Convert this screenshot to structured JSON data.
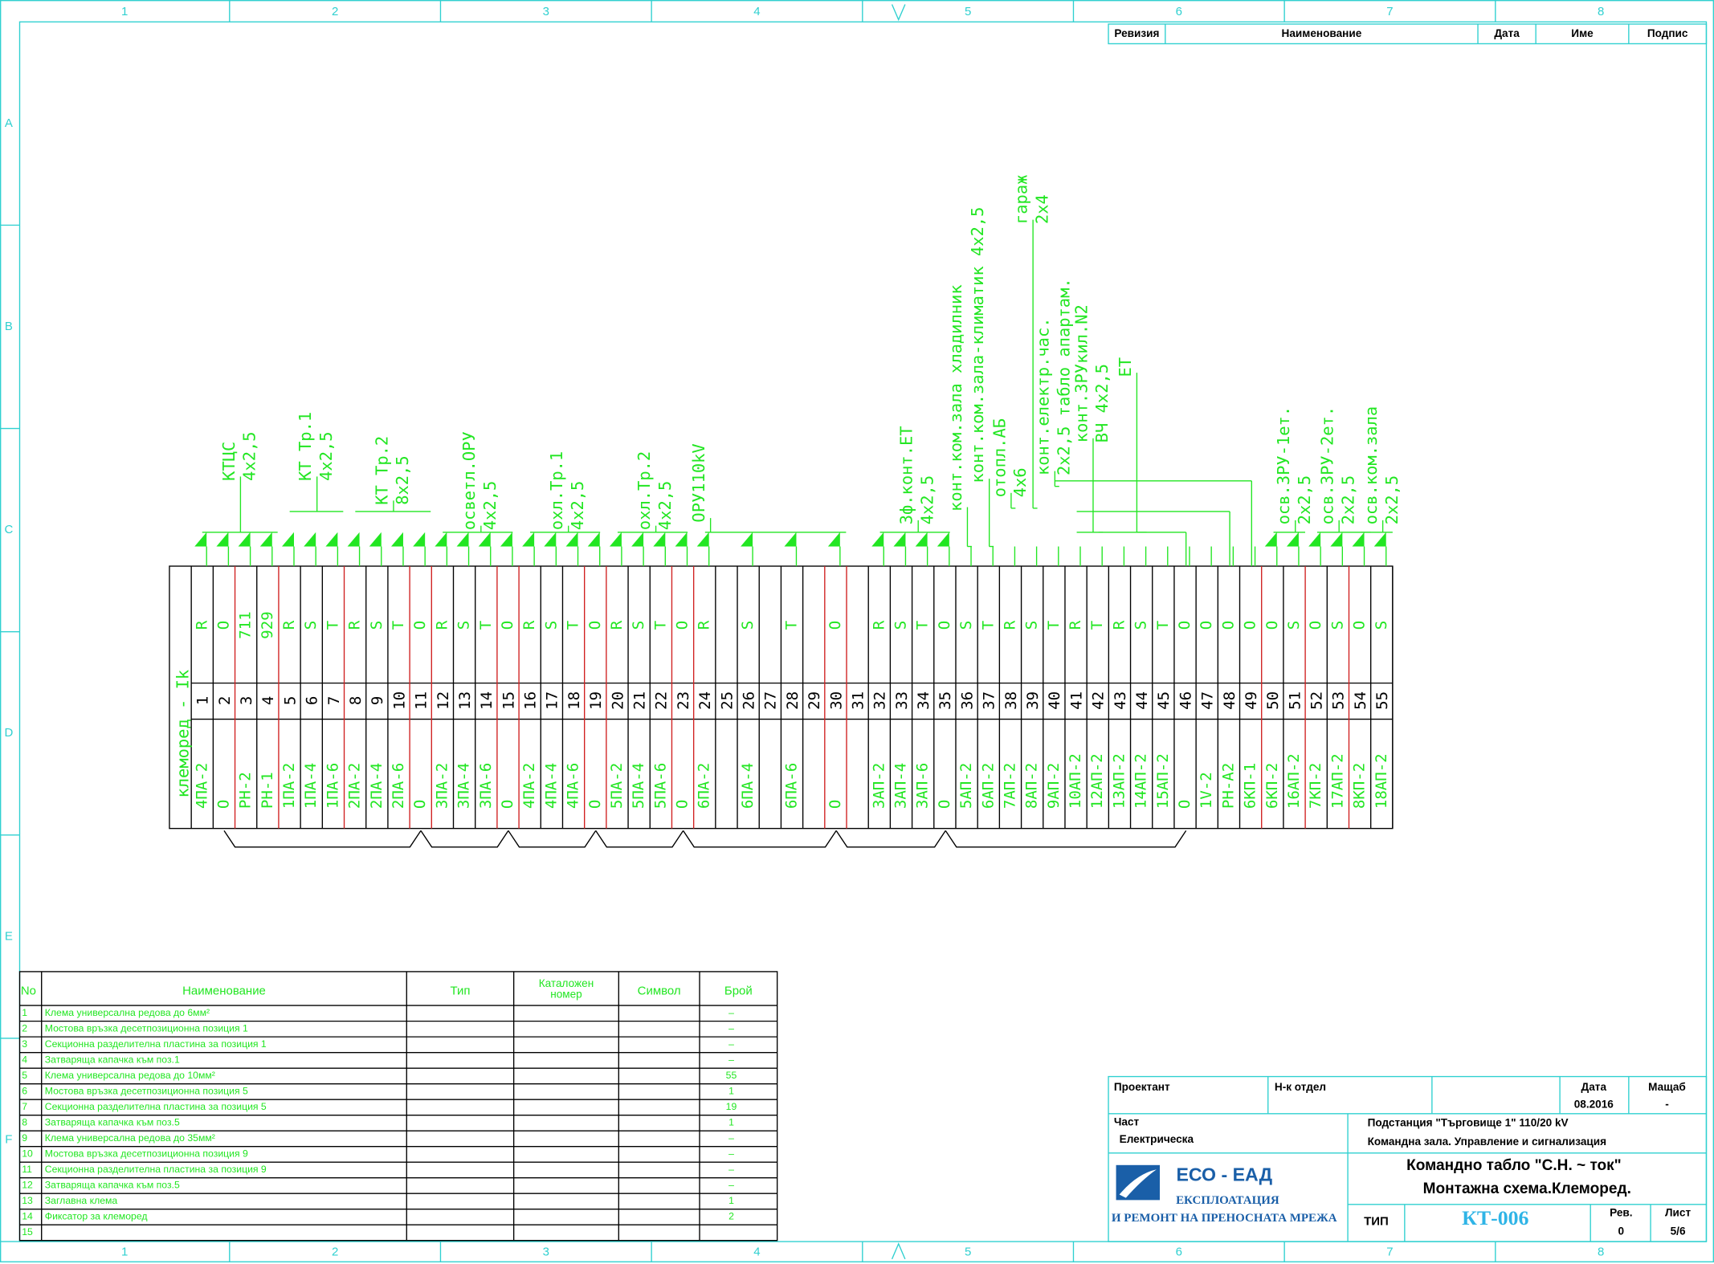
{
  "frame": {
    "columns": [
      "1",
      "2",
      "3",
      "4",
      "5",
      "6",
      "7",
      "8"
    ],
    "rows": [
      "A",
      "B",
      "C",
      "D",
      "E",
      "F"
    ]
  },
  "revision_header": [
    "Ревизия",
    "Наименование",
    "Дата",
    "Име",
    "Подпис"
  ],
  "terminal_strip": {
    "title": "клеморед - Ik",
    "terminals": [
      [
        1,
        "R",
        "4ПА-2"
      ],
      [
        2,
        "O",
        "O"
      ],
      [
        3,
        "711",
        "РН-2"
      ],
      [
        4,
        "929",
        "РН-1"
      ],
      [
        5,
        "R",
        "1ПА-2"
      ],
      [
        6,
        "S",
        "1ПА-4"
      ],
      [
        7,
        "T",
        "1ПА-6"
      ],
      [
        8,
        "R",
        "2ПА-2"
      ],
      [
        9,
        "S",
        "2ПА-4"
      ],
      [
        10,
        "T",
        "2ПА-6"
      ],
      [
        11,
        "O",
        "O"
      ],
      [
        12,
        "R",
        "3ПА-2"
      ],
      [
        13,
        "S",
        "3ПА-4"
      ],
      [
        14,
        "T",
        "3ПА-6"
      ],
      [
        15,
        "O",
        "O"
      ],
      [
        16,
        "R",
        "4ПА-2"
      ],
      [
        17,
        "S",
        "4ПА-4"
      ],
      [
        18,
        "T",
        "4ПА-6"
      ],
      [
        19,
        "O",
        "O"
      ],
      [
        20,
        "R",
        "5ПА-2"
      ],
      [
        21,
        "S",
        "5ПА-4"
      ],
      [
        22,
        "T",
        "5ПА-6"
      ],
      [
        23,
        "O",
        "O"
      ],
      [
        24,
        "R",
        "6ПА-2"
      ],
      [
        25,
        null,
        null
      ],
      [
        26,
        "S",
        "6ПА-4"
      ],
      [
        27,
        null,
        null
      ],
      [
        28,
        "T",
        "6ПА-6"
      ],
      [
        29,
        null,
        null
      ],
      [
        30,
        "O",
        "O"
      ],
      [
        31,
        null,
        null
      ],
      [
        32,
        "R",
        "3АП-2"
      ],
      [
        33,
        "S",
        "3АП-4"
      ],
      [
        34,
        "T",
        "3АП-6"
      ],
      [
        35,
        "O",
        "O"
      ],
      [
        36,
        "S",
        "5АП-2"
      ],
      [
        37,
        "T",
        "6АП-2"
      ],
      [
        38,
        "R",
        "7АП-2"
      ],
      [
        39,
        "S",
        "8АП-2"
      ],
      [
        40,
        "T",
        "9АП-2"
      ],
      [
        41,
        "R",
        "10АП-2"
      ],
      [
        42,
        "T",
        "12АП-2"
      ],
      [
        43,
        "R",
        "13АП-2"
      ],
      [
        44,
        "S",
        "14АП-2"
      ],
      [
        45,
        "T",
        "15АП-2"
      ],
      [
        46,
        "O",
        "O"
      ],
      [
        47,
        "O",
        "1V-2"
      ],
      [
        48,
        "O",
        "РН-А2"
      ],
      [
        49,
        "O",
        "6КП-1"
      ],
      [
        50,
        "O",
        "6КП-2"
      ],
      [
        51,
        "S",
        "16АП-2"
      ],
      [
        52,
        "O",
        "7КП-2"
      ],
      [
        53,
        "S",
        "17АП-2"
      ],
      [
        54,
        "O",
        "8КП-2"
      ],
      [
        55,
        "S",
        "18АП-2"
      ]
    ]
  },
  "cables": [
    {
      "lines": [
        "КТЦС",
        "4x2,5"
      ]
    },
    {
      "lines": [
        "КТ Тр.1",
        "4x2,5"
      ]
    },
    {
      "lines": [
        "КТ Тр.2",
        "8x2,5"
      ]
    },
    {
      "lines": [
        "осветл.ОРУ",
        "4x2,5"
      ]
    },
    {
      "lines": [
        "охл.Тр.1",
        "4x2,5"
      ]
    },
    {
      "lines": [
        "охл.Тр.2",
        "4x2,5"
      ]
    },
    {
      "lines": [
        "ОРУ110kV"
      ]
    },
    {
      "lines": [
        "3ф.конт.ЕТ",
        "4x2,5"
      ]
    },
    {
      "lines": [
        "конт.ком.зала хладилник"
      ]
    },
    {
      "lines": [
        "конт.ком.зала-климатик  4x2,5"
      ]
    },
    {
      "lines": [
        "отопл.АБ",
        "4x6"
      ]
    },
    {
      "lines": [
        "гараж",
        "2x4"
      ]
    },
    {
      "lines": [
        "конт.електр.час.",
        "2x2,5  табло апартам."
      ]
    },
    {
      "lines": [
        "конт.ЗРУкил.N2",
        "ВЧ 4x2,5"
      ]
    },
    {
      "lines": [
        "ЕТ"
      ]
    },
    {
      "lines": [
        "осв.ЗРУ-1ет.",
        "2x2,5"
      ]
    },
    {
      "lines": [
        "осв.ЗРУ-2ет.",
        "2x2,5"
      ]
    },
    {
      "lines": [
        "осв.ком.зала",
        "2x2,5"
      ]
    }
  ],
  "parts_table": {
    "header": [
      "No",
      "Наименование",
      "Тип",
      "Каталожен номер",
      "Символ",
      "Брой"
    ],
    "rows": [
      [
        "1",
        "Клема универсална редова до 6мм²",
        "–"
      ],
      [
        "2",
        "Мостова връзка десетпозиционна позиция 1",
        "–"
      ],
      [
        "3",
        "Секционна разделителна пластина за позиция 1",
        "–"
      ],
      [
        "4",
        "Затваряща капачка към поз.1",
        "–"
      ],
      [
        "5",
        "Клема универсална редова до 10мм²",
        "55"
      ],
      [
        "6",
        "Мостова връзка десетпозиционна позиция 5",
        "1"
      ],
      [
        "7",
        "Секционна разделителна пластина за позиция 5",
        "19"
      ],
      [
        "8",
        "Затваряща капачка към поз.5",
        "1"
      ],
      [
        "9",
        "Клема универсална редова до 35мм²",
        "–"
      ],
      [
        "10",
        "Мостова връзка десетпозиционна позиция 9",
        "–"
      ],
      [
        "11",
        "Секционна разделителна пластина за позиция 9",
        "–"
      ],
      [
        "12",
        "Затваряща капачка към поз.5",
        "–"
      ],
      [
        "13",
        "Заглавна клема",
        "1"
      ],
      [
        "14",
        "Фиксатор за клеморед",
        "2"
      ],
      [
        "15",
        null,
        null
      ]
    ]
  },
  "title_block": {
    "designer": "Проектант",
    "dept_head": "Н-к отдел",
    "date_label": "Дата",
    "date": "08.2016",
    "scale_label": "Мащаб",
    "scale": "-",
    "part_label": "Част",
    "part": "Електрическа",
    "project": "Подстанция \"Търговище 1\" 110/20 kV",
    "subproject": "Командна зала. Управление и сигнализация",
    "company": "ЕСО - ЕАД",
    "company_line1": "ЕКСПЛОАТАЦИЯ",
    "company_line2": "И РЕМОНТ НА ПРЕНОСНАТА МРЕЖА",
    "drawing_title": "Командно табло  \"С.Н. ~ ток\"",
    "drawing_subtitle": "Монтажна схема.Клеморед.",
    "type_label": "ТИП",
    "type": "КТ-006",
    "rev_label": "Рев.",
    "rev": "0",
    "sheet_label": "Лист",
    "sheet": "5/6"
  }
}
